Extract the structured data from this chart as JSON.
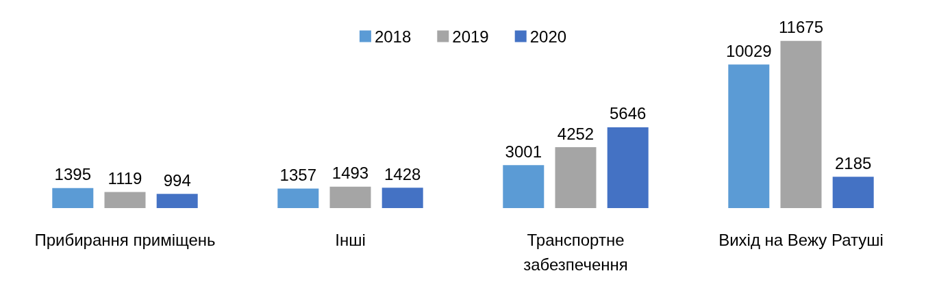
{
  "chart_data": {
    "type": "bar",
    "categories": [
      "Прибирання приміщень",
      "Інші",
      "Транспортне\nзабезпечення",
      "Вихід на Вежу Ратуші"
    ],
    "series": [
      {
        "name": "2018",
        "color": "#5b9bd5",
        "values": [
          1395,
          1357,
          3001,
          10029
        ]
      },
      {
        "name": "2019",
        "color": "#a5a5a5",
        "values": [
          1119,
          1493,
          4252,
          11675
        ]
      },
      {
        "name": "2020",
        "color": "#4472c4",
        "values": [
          994,
          1428,
          5646,
          2185
        ]
      }
    ],
    "data_labels": true,
    "legend": "top",
    "grid": false
  }
}
